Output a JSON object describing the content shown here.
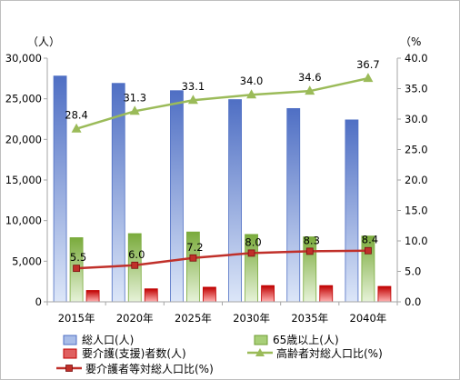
{
  "chart_data": {
    "type": "bar",
    "categories": [
      "2015年",
      "2020年",
      "2025年",
      "2030年",
      "2035年",
      "2040年"
    ],
    "y_left": {
      "unit": "（人）",
      "range": [
        0,
        30000
      ],
      "ticks": [
        "0",
        "5,000",
        "10,000",
        "15,000",
        "20,000",
        "25,000",
        "30,000"
      ]
    },
    "y_right": {
      "unit": "（%",
      "range": [
        0,
        40
      ],
      "ticks": [
        "0.0",
        "5.0",
        "10.0",
        "15.0",
        "20.0",
        "25.0",
        "30.0",
        "35.0",
        "40.0"
      ]
    },
    "series": [
      {
        "name": "総人口(人)",
        "kind": "bar",
        "axis": "left",
        "fill_top": "#4f6fc4",
        "fill_bottom": "#dce6f8",
        "values": [
          27800,
          26900,
          26000,
          24900,
          23800,
          22400
        ]
      },
      {
        "name": "65歳以上(人)",
        "kind": "bar",
        "axis": "left",
        "fill_top": "#7aab3c",
        "fill_bottom": "#e6f2d8",
        "values": [
          7900,
          8400,
          8600,
          8300,
          8000,
          8100
        ]
      },
      {
        "name": "要介護(支援)者数(人)",
        "kind": "bar",
        "axis": "left",
        "fill_top": "#c00000",
        "fill_bottom": "#ffb3b3",
        "values": [
          1400,
          1600,
          1800,
          2000,
          2000,
          1900
        ]
      },
      {
        "name": "高齢者対総人口比(%)",
        "kind": "line",
        "axis": "right",
        "color": "#9bbb59",
        "marker": "triangle",
        "values": [
          28.4,
          31.3,
          33.1,
          34.0,
          34.6,
          36.7
        ],
        "labels": [
          "28.4",
          "31.3",
          "33.1",
          "34.0",
          "34.6",
          "36.7"
        ]
      },
      {
        "name": "要介護者等対総人口比(%)",
        "kind": "line",
        "axis": "right",
        "color": "#c0302a",
        "marker": "square",
        "values": [
          5.5,
          6.0,
          7.2,
          8.0,
          8.3,
          8.4
        ],
        "labels": [
          "5.5",
          "6.0",
          "7.2",
          "8.0",
          "8.3",
          "8.4"
        ]
      }
    ],
    "grid": false,
    "legend_position": "bottom"
  }
}
